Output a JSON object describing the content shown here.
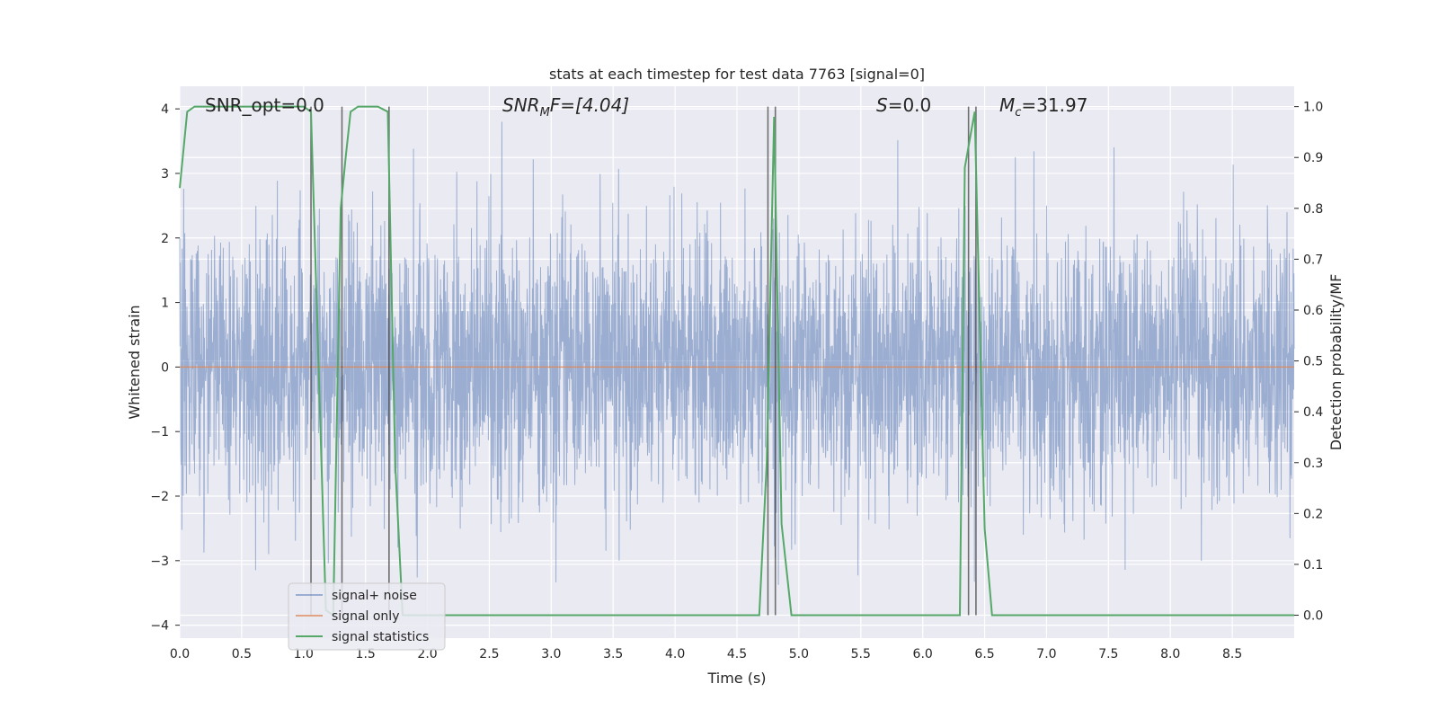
{
  "chart_data": {
    "type": "line",
    "title": "stats at each timestep for test data 7763 [signal=0]",
    "xlabel": "Time (s)",
    "ylabel": "Whitened strain",
    "ylabel_right": "Detection probability/MF",
    "xlim": [
      0.0,
      9.0
    ],
    "ylim": [
      -4.2,
      4.35
    ],
    "ylim_right": [
      -0.045,
      1.04
    ],
    "grid": true,
    "xticks": [
      "0.0",
      "0.5",
      "1.0",
      "1.5",
      "2.0",
      "2.5",
      "3.0",
      "3.5",
      "4.0",
      "4.5",
      "5.0",
      "5.5",
      "6.0",
      "6.5",
      "7.0",
      "7.5",
      "8.0",
      "8.5"
    ],
    "yticks": [
      "4",
      "3",
      "2",
      "1",
      "0",
      "−1",
      "−2",
      "−3",
      "−4"
    ],
    "yticks_right": [
      "1.0",
      "0.9",
      "0.8",
      "0.7",
      "0.6",
      "0.5",
      "0.4",
      "0.3",
      "0.2",
      "0.1",
      "0.0"
    ],
    "annotations": {
      "snr_opt": "SNR_opt=0.0",
      "snr_mf_main": "SNR",
      "snr_mf_sub": "M",
      "snr_mf_rest": "F=[4.04]",
      "s_label": "S",
      "s_value": "=0.0",
      "mc_main": "M",
      "mc_sub": "c",
      "mc_value": "=31.97"
    },
    "legend": {
      "placement": "lower-left",
      "entries": [
        "signal+ noise",
        "signal only",
        "signal statistics"
      ]
    },
    "series": [
      {
        "name": "signal+ noise",
        "color": "#4c72b0",
        "kind": "noise",
        "approx_std": 1.0,
        "peak_range": [
          -3.6,
          3.8
        ]
      },
      {
        "name": "signal only",
        "color": "#dd8452",
        "x": [
          0.0,
          9.0
        ],
        "y": [
          0.0,
          0.0
        ]
      },
      {
        "name": "signal statistics",
        "color": "#55a868",
        "axis": "right",
        "x": [
          0.0,
          0.06,
          0.12,
          1.0,
          1.06,
          1.18,
          1.24,
          1.3,
          1.34,
          1.38,
          1.44,
          1.6,
          1.68,
          1.74,
          1.8,
          4.68,
          4.74,
          4.8,
          4.86,
          4.94,
          6.3,
          6.34,
          6.42,
          6.5,
          6.56,
          9.0
        ],
        "y": [
          0.84,
          0.99,
          1.0,
          1.0,
          0.99,
          0.01,
          0.0,
          0.8,
          0.9,
          0.99,
          1.0,
          1.0,
          0.99,
          0.3,
          0.0,
          0.0,
          0.3,
          0.98,
          0.18,
          0.0,
          0.0,
          0.88,
          0.99,
          0.17,
          0.0,
          0.0
        ]
      }
    ],
    "vlines": [
      1.06,
      1.31,
      1.69,
      4.75,
      4.81,
      6.37,
      6.43
    ]
  }
}
